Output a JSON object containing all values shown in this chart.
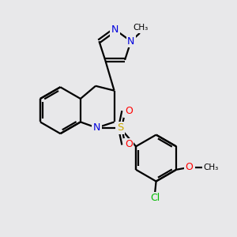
{
  "bg_color": "#e8e8ea",
  "bond_color": "#000000",
  "bond_width": 1.6,
  "atom_colors": {
    "N": "#0000dd",
    "O": "#ff0000",
    "S": "#ccaa00",
    "Cl": "#00bb00",
    "C": "#000000"
  }
}
